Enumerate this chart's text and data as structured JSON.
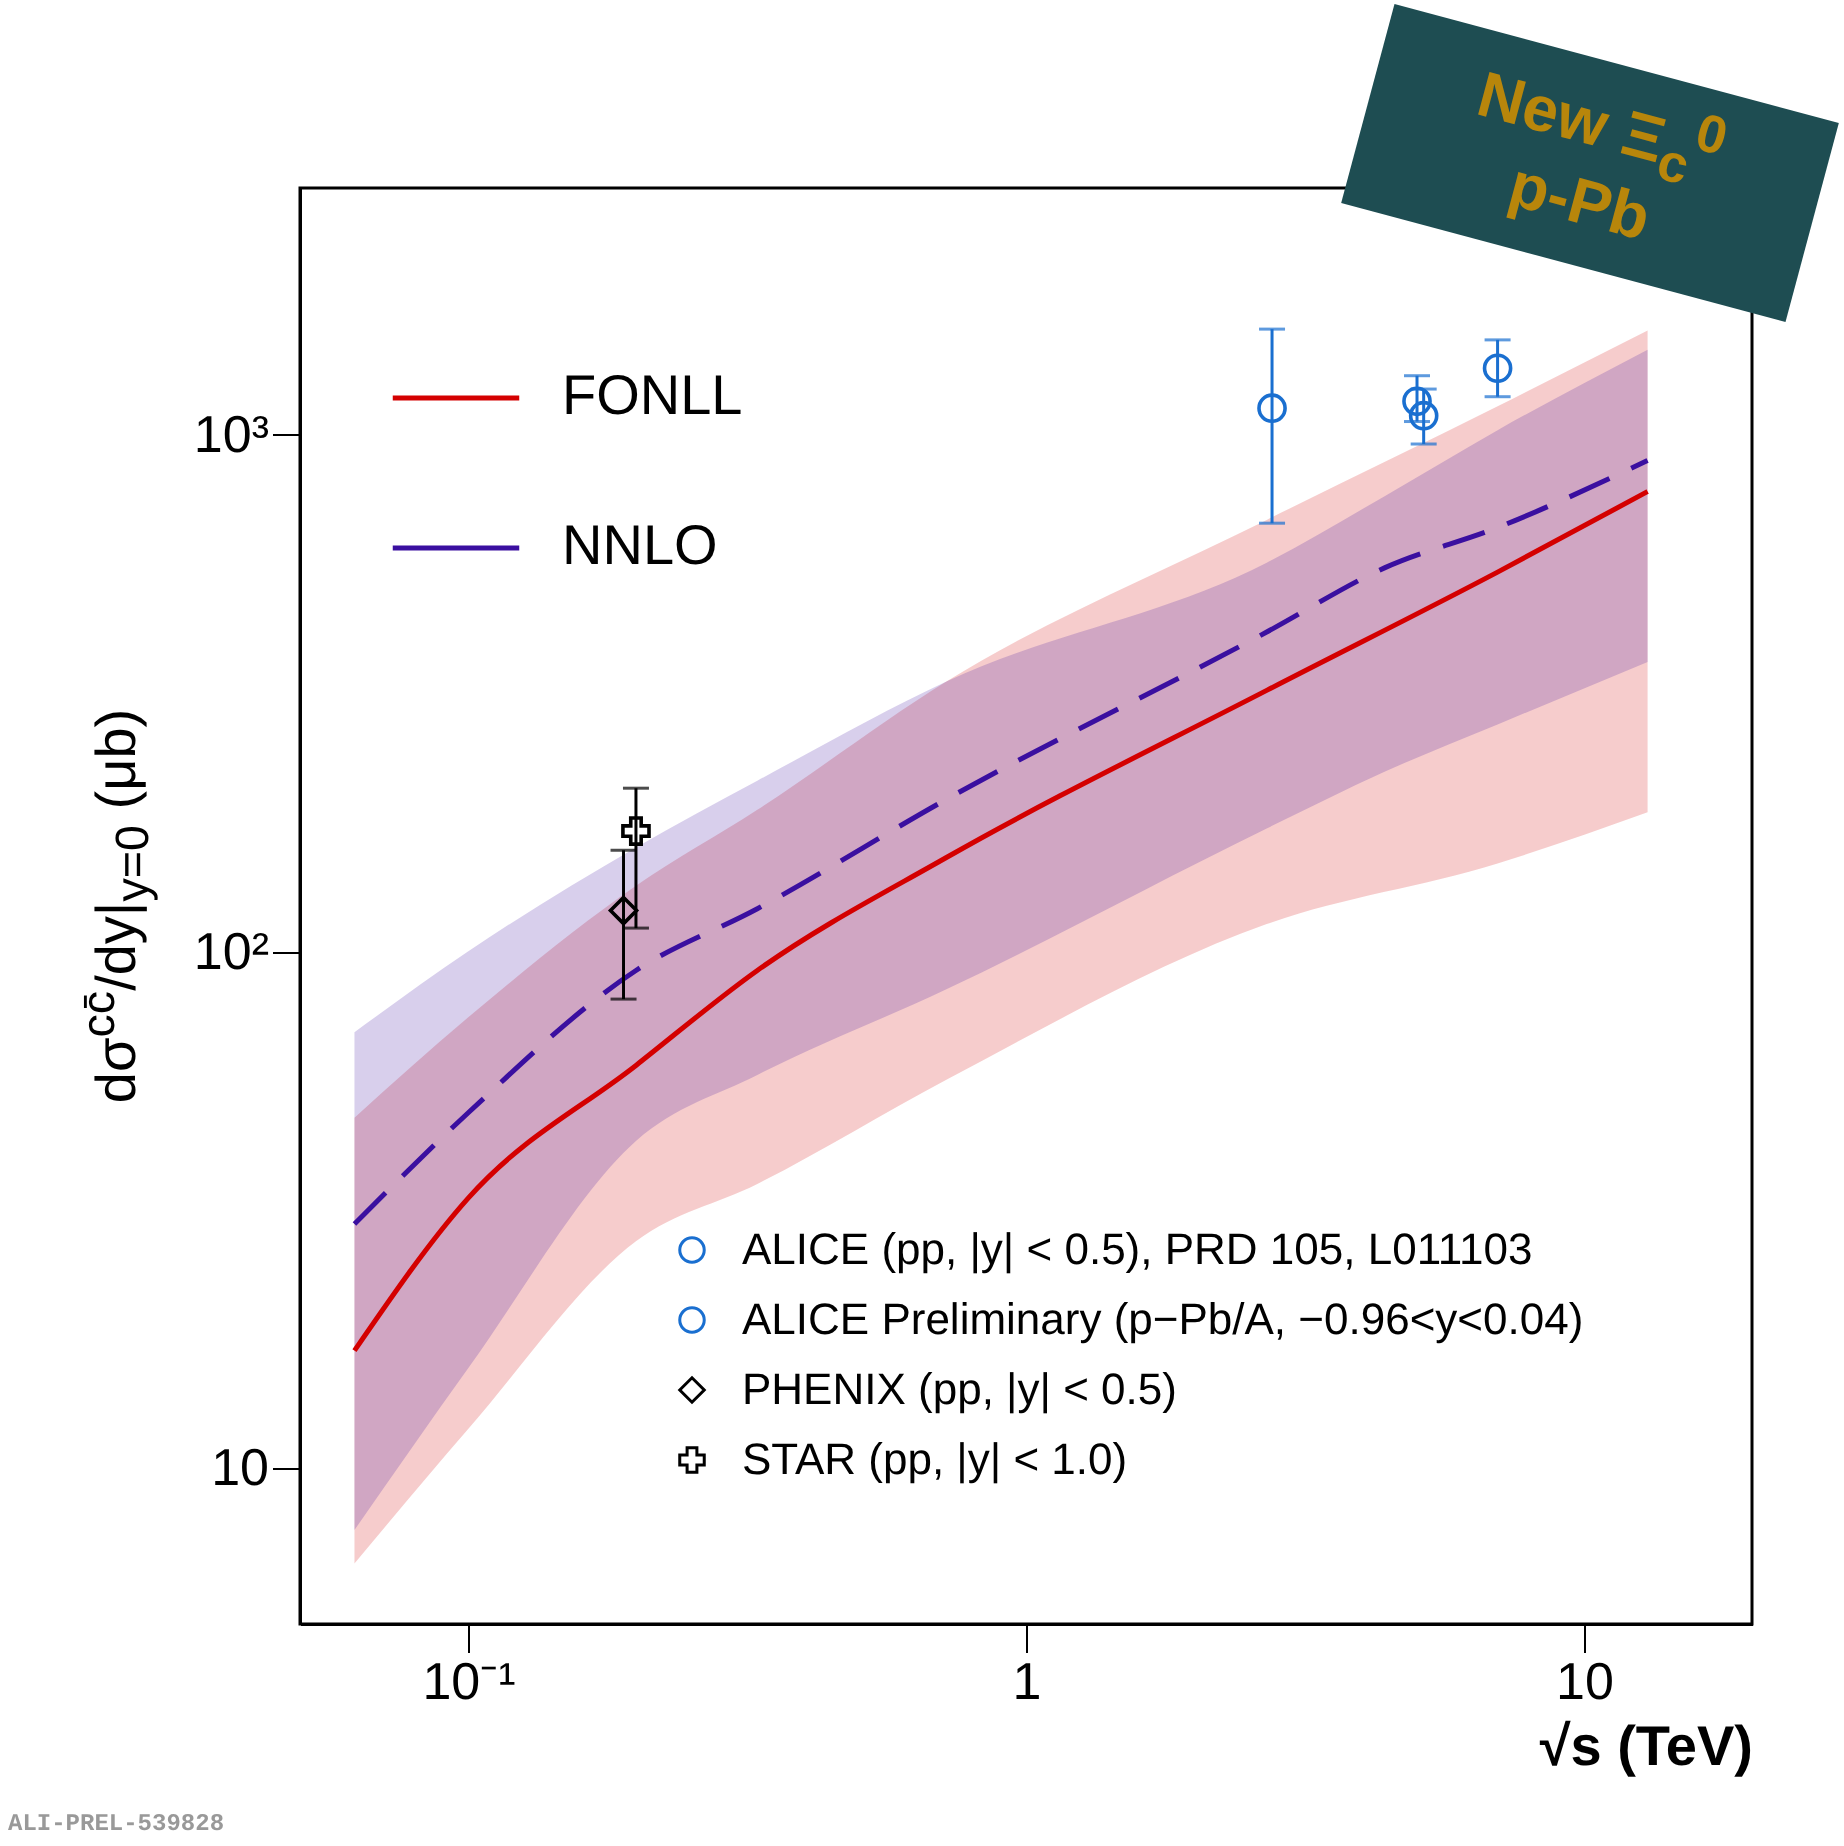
{
  "chart_data": {
    "type": "line",
    "xlabel": "√s (TeV)",
    "ylabel": "dσ$^{cc̄}$/dy|$_{y=0}$ (μb)",
    "log": "xy",
    "xlim": [
      0.05,
      20
    ],
    "ylim": [
      5,
      3000
    ],
    "xticks": [
      {
        "value": 0.1,
        "label": "10⁻¹"
      },
      1,
      10
    ],
    "yticks": [
      10,
      {
        "value": 100,
        "label": "10²"
      },
      {
        "value": 1000,
        "label": "10³"
      }
    ],
    "legend": "left",
    "grid": false,
    "annotations": [
      "New Ξ$_{c}$$^{0}$ p-Pb",
      "ALI-PREL-539828"
    ],
    "series": [
      {
        "name": "FONLL",
        "line_style": "solid",
        "color": "#d40000",
        "x": [
          0.0626,
          0.1,
          0.2,
          0.33,
          0.72,
          2.7,
          7,
          13
        ],
        "values": [
          16.9,
          33.3,
          60.2,
          91.9,
          152,
          320,
          542,
          776
        ],
        "lower": [
          6.55,
          11.9,
          27.5,
          35.5,
          56.5,
          113,
          148,
          186
        ],
        "upper": [
          47.7,
          74.5,
          134,
          188,
          333,
          684,
          1135,
          1590
        ]
      },
      {
        "name": "NNLO",
        "line_style": "dashed",
        "color": "#3a0fa0",
        "x": [
          0.0626,
          0.1,
          0.2,
          0.33,
          0.72,
          2.7,
          4.4,
          7,
          13
        ],
        "values": [
          29.7,
          48.7,
          91.9,
          121,
          197,
          415,
          553,
          661,
          891
        ],
        "lower": [
          7.6,
          15.6,
          43.0,
          57.7,
          84.5,
          173,
          223,
          275,
          363
        ],
        "upper": [
          69.8,
          100,
          159,
          214,
          333,
          565,
          761,
          1020,
          1460
        ]
      },
      {
        "name": "ALICE (pp, |y| < 0.5), PRD 105, L011103",
        "type": "scatter",
        "marker": "circle",
        "color": "#1a6fd0",
        "x": [
          2.76,
          5.02,
          7
        ],
        "values": [
          1125,
          1160,
          1344
        ],
        "errors": [
          [
            674,
            1600
          ],
          [
            1060,
            1300
          ],
          [
            1184,
            1525
          ]
        ]
      },
      {
        "name": "ALICE Preliminary (p−Pb/A, −0.96<y<0.04)",
        "type": "scatter",
        "marker": "circle",
        "color": "#1a6fd0",
        "x": [
          5.16
        ],
        "values": [
          1088
        ],
        "errors": [
          [
            959,
            1225
          ]
        ]
      },
      {
        "name": "PHENIX (pp, |y| < 0.5)",
        "type": "scatter",
        "marker": "diamond",
        "color": "#000000",
        "x": [
          0.19
        ],
        "values": [
          120
        ],
        "errors": [
          [
            80.9,
            157
          ]
        ]
      },
      {
        "name": "STAR (pp, |y| < 1.0)",
        "type": "scatter",
        "marker": "cross",
        "color": "#000000",
        "x": [
          0.2
        ],
        "values": [
          171
        ],
        "errors": [
          [
            111,
            207
          ]
        ]
      }
    ]
  }
}
